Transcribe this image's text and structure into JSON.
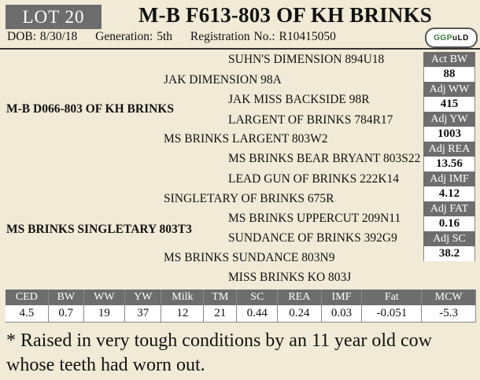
{
  "lot": "LOT 20",
  "title": "M-B F613-803 OF KH BRINKS",
  "info": {
    "dob": "DOB: 8/30/18",
    "generation": "Generation: 5th",
    "registration": "Registration No.: R10415050"
  },
  "logo": {
    "text_left": "GGP",
    "text_right": "uLD"
  },
  "pedigree": {
    "sire": "M-B D066-803 OF KH BRINKS",
    "dam": "MS BRINKS SINGLETARY 803T3",
    "ss": "JAK DIMENSION 98A",
    "sd": "MS BRINKS LARGENT 803W2",
    "ds": "SINGLETARY OF BRINKS 675R",
    "dd": "MS BRINKS SUNDANCE 803N9",
    "sss": "SUHN'S DIMENSION 894U18",
    "ssd": "JAK MISS BACKSIDE 98R",
    "sds": "LARGENT OF BRINKS 784R17",
    "sdd": "MS BRINKS BEAR BRYANT 803S22",
    "dss": "LEAD GUN OF BRINKS 222K14",
    "dsd": "MS BRINKS UPPERCUT 209N11",
    "dds": "SUNDANCE OF BRINKS 392G9",
    "ddd": "MISS BRINKS KO 803J"
  },
  "side_stats": [
    {
      "label": "Act BW",
      "value": "88"
    },
    {
      "label": "Adj WW",
      "value": "415"
    },
    {
      "label": "Adj YW",
      "value": "1003"
    },
    {
      "label": "Adj REA",
      "value": "13.56"
    },
    {
      "label": "Adj IMF",
      "value": "4.12"
    },
    {
      "label": "Adj FAT",
      "value": "0.16"
    },
    {
      "label": "Adj SC",
      "value": "38.2"
    }
  ],
  "epd_headers": [
    "CED",
    "BW",
    "WW",
    "YW",
    "Milk",
    "TM",
    "SC",
    "REA",
    "IMF",
    "Fat",
    "MCW"
  ],
  "epd_values": [
    "4.5",
    "0.7",
    "19",
    "37",
    "12",
    "21",
    "0.44",
    "0.24",
    "0.03",
    "-0.051",
    "-5.3"
  ],
  "note": "* Raised in very tough conditions by an 11 year old cow whose teeth had worn out."
}
